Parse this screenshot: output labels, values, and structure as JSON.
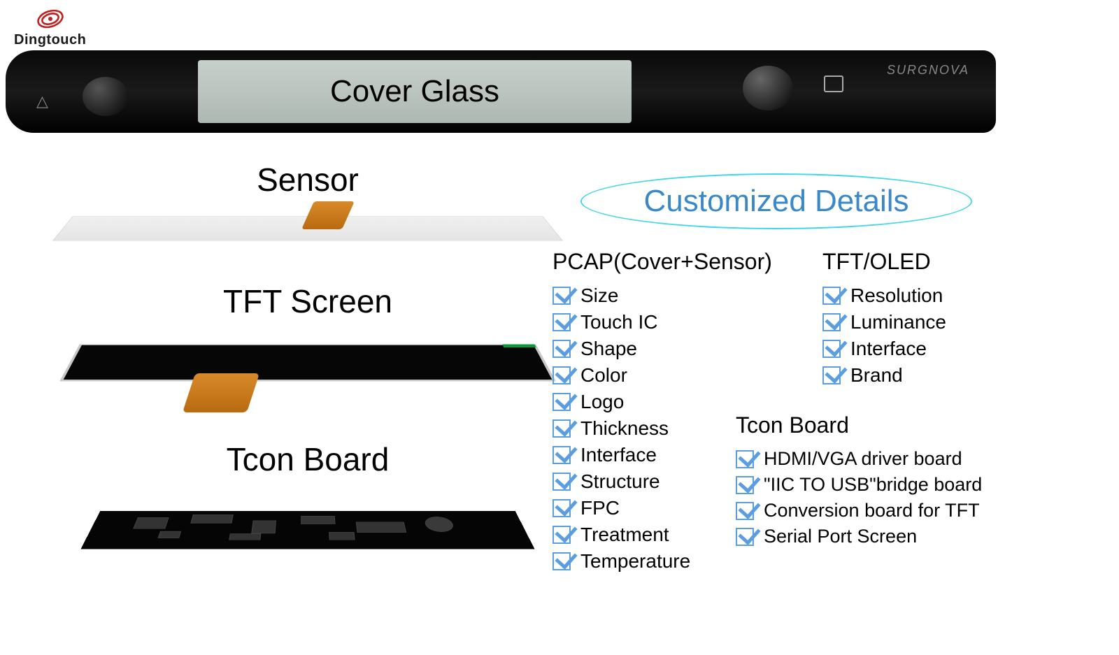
{
  "brand_logo_text": "Dingtouch",
  "cover_glass": {
    "label": "Cover Glass",
    "panel_brand": "SURGNOVA"
  },
  "stack": {
    "sensor_label": "Sensor",
    "tft_label": "TFT Screen",
    "tcon_label": "Tcon Board"
  },
  "details": {
    "title": "Customized Details",
    "title_color": "#3b88c8",
    "title_border_color": "#3fd6e6",
    "check_color": "#5a9de0"
  },
  "pcap": {
    "heading": "PCAP(Cover+Sensor)",
    "items": [
      "Size",
      "Touch IC",
      "Shape",
      "Color",
      "Logo",
      "Thickness",
      "Interface",
      "Structure",
      "FPC",
      "Treatment",
      "Temperature"
    ]
  },
  "tft": {
    "heading": "TFT/OLED",
    "items": [
      "Resolution",
      "Luminance",
      "Interface",
      "Brand"
    ]
  },
  "tcon": {
    "heading": "Tcon Board",
    "items": [
      "HDMI/VGA driver board",
      "\"IIC TO USB\"bridge board",
      "Conversion board for TFT",
      "Serial Port Screen"
    ]
  },
  "colors": {
    "logo_red": "#c21f1f",
    "flex_orange": "#c87820"
  }
}
